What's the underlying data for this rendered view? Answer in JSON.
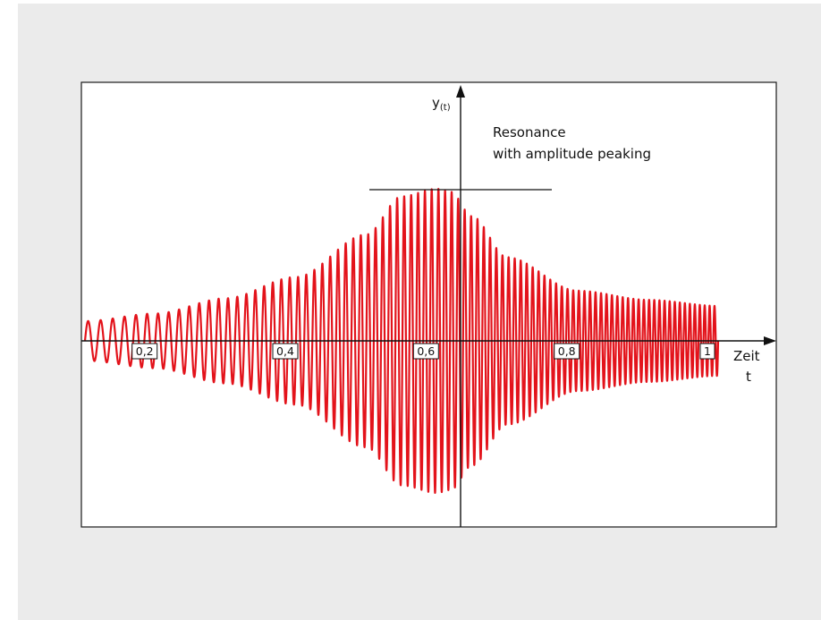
{
  "chart_data": {
    "type": "line",
    "title": "",
    "xlabel": [
      "Zeit",
      "t"
    ],
    "ylabel": "y",
    "ylabel_subscript": "(t)",
    "xlim": [
      0.1,
      1.0
    ],
    "x_ticks": [
      {
        "value": 0.2,
        "label": "0,2"
      },
      {
        "value": 0.4,
        "label": "0,4"
      },
      {
        "value": 0.6,
        "label": "0,6"
      },
      {
        "value": 0.8,
        "label": "0,8"
      },
      {
        "value": 1.0,
        "label": "1"
      }
    ],
    "annotation": {
      "lines": [
        "Resonance",
        "with amplitude peaking"
      ],
      "peak_line": true
    },
    "series": [
      {
        "color": "#e3131b",
        "cycles": 90,
        "envelope": {
          "x": [
            0.1,
            0.2,
            0.3,
            0.4,
            0.5,
            0.55,
            0.6,
            0.62,
            0.65,
            0.7,
            0.8,
            0.9,
            1.0
          ],
          "amplitude": [
            0.13,
            0.18,
            0.28,
            0.42,
            0.7,
            0.95,
            1.0,
            0.98,
            0.82,
            0.55,
            0.33,
            0.27,
            0.23
          ]
        }
      }
    ],
    "grid": false,
    "legend": "none"
  }
}
